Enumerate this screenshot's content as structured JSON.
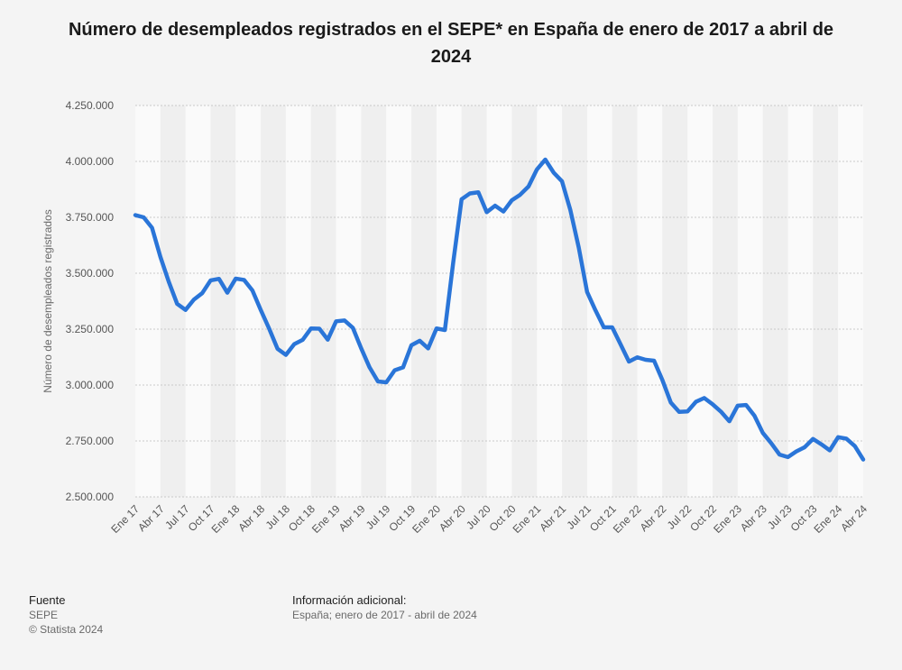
{
  "chart_data": {
    "type": "line",
    "title": "Número de desempleados registrados en el SEPE* en España de enero de 2017 a abril de 2024",
    "xlabel": "",
    "ylabel": "Número de desempleados registrados",
    "ylim": [
      2500000,
      4250000
    ],
    "yticks": [
      2500000,
      2750000,
      3000000,
      3250000,
      3500000,
      3750000,
      4000000,
      4250000
    ],
    "ytick_labels": [
      "2.500.000",
      "2.750.000",
      "3.000.000",
      "3.250.000",
      "3.500.000",
      "3.750.000",
      "4.000.000",
      "4.250.000"
    ],
    "xtick_labels": [
      "Ene 17",
      "Abr 17",
      "Jul 17",
      "Oct 17",
      "Ene 18",
      "Abr 18",
      "Jul 18",
      "Oct 18",
      "Ene 19",
      "Abr 19",
      "Jul 19",
      "Oct 19",
      "Ene 20",
      "Abr 20",
      "Jul 20",
      "Oct 20",
      "Ene 21",
      "Abr 21",
      "Jul 21",
      "Oct 21",
      "Ene 22",
      "Abr 22",
      "Jul 22",
      "Oct 22",
      "Ene 23",
      "Abr 23",
      "Jul 23",
      "Oct 23",
      "Ene 24",
      "Abr 24"
    ],
    "grid": true,
    "line_color": "#2a75d8",
    "series": [
      {
        "values": [
          3760000,
          3750000,
          3703000,
          3573000,
          3462000,
          3363000,
          3336000,
          3382000,
          3411000,
          3468000,
          3475000,
          3413000,
          3476000,
          3470000,
          3423000,
          3335000,
          3252000,
          3162000,
          3135000,
          3183000,
          3202000,
          3253000,
          3252000,
          3203000,
          3285000,
          3289000,
          3256000,
          3164000,
          3079000,
          3016000,
          3012000,
          3066000,
          3079000,
          3178000,
          3198000,
          3164000,
          3253000,
          3246000,
          3549000,
          3831000,
          3857000,
          3862000,
          3773000,
          3802000,
          3776000,
          3826000,
          3851000,
          3888000,
          3964000,
          4008000,
          3950000,
          3911000,
          3782000,
          3615000,
          3416000,
          3334000,
          3258000,
          3258000,
          3182000,
          3105000,
          3124000,
          3113000,
          3109000,
          3022000,
          2922000,
          2880000,
          2882000,
          2925000,
          2942000,
          2914000,
          2881000,
          2838000,
          2908000,
          2911000,
          2863000,
          2786000,
          2740000,
          2689000,
          2678000,
          2703000,
          2722000,
          2759000,
          2735000,
          2708000,
          2767000,
          2760000,
          2727000,
          2667000
        ]
      }
    ]
  },
  "footer": {
    "source_heading": "Fuente",
    "source_name": "SEPE",
    "copyright": "© Statista 2024",
    "info_heading": "Información adicional:",
    "info_text": "España; enero de 2017 - abril de 2024"
  }
}
